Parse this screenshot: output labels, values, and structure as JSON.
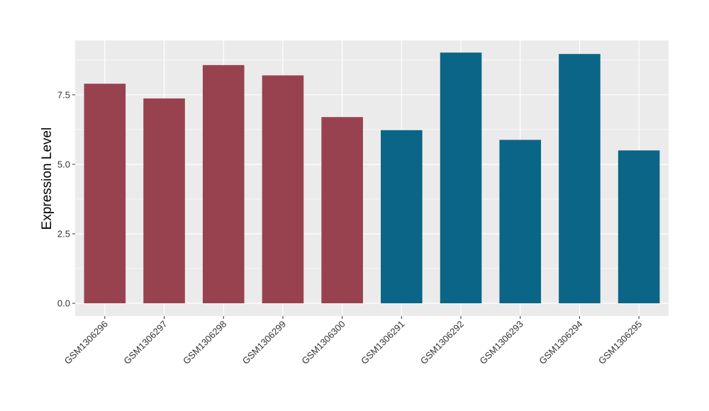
{
  "chart_data": {
    "type": "bar",
    "title": "",
    "xlabel": "",
    "ylabel": "Expression Level",
    "ylim": [
      0,
      9.4
    ],
    "y_ticks": [
      0,
      2.5,
      5,
      7.5
    ],
    "y_tick_labels": [
      "0.0",
      "2.5",
      "5.0",
      "7.5"
    ],
    "grid": true,
    "legend": "none",
    "categories": [
      "GSM1306296",
      "GSM1306297",
      "GSM1306298",
      "GSM1306299",
      "GSM1306300",
      "GSM1306291",
      "GSM1306292",
      "GSM1306293",
      "GSM1306294",
      "GSM1306295"
    ],
    "values": [
      7.9,
      7.37,
      8.57,
      8.2,
      6.7,
      6.23,
      9.02,
      5.88,
      8.97,
      5.5
    ],
    "bar_colors": [
      "#99424f",
      "#99424f",
      "#99424f",
      "#99424f",
      "#99424f",
      "#0b6587",
      "#0b6587",
      "#0b6587",
      "#0b6587",
      "#0b6587"
    ],
    "panel_background": "#ebebeb",
    "grid_color": "#ffffff"
  }
}
